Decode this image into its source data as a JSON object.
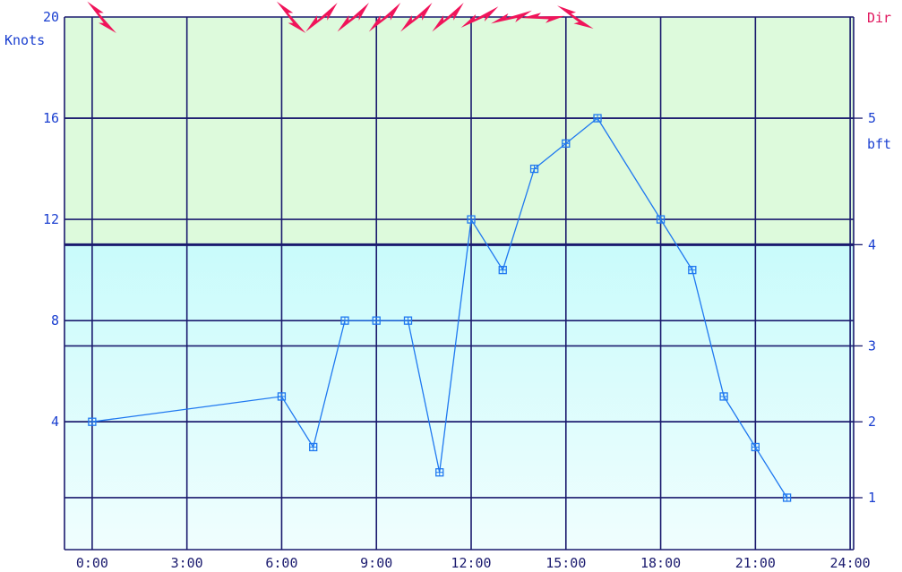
{
  "chart_data": {
    "type": "line",
    "left_axis_label": "Knots",
    "right_axis_label": "bft",
    "direction_label": "Dir",
    "x_ticks": [
      "0:00",
      "3:00",
      "6:00",
      "9:00",
      "12:00",
      "15:00",
      "18:00",
      "21:00",
      "24:00"
    ],
    "y_ticks": [
      "4",
      "8",
      "12",
      "16",
      "20"
    ],
    "bft_ticks": [
      "1",
      "2",
      "3",
      "4",
      "5"
    ],
    "bft_thresholds_knots": [
      1,
      4,
      7,
      11,
      16
    ],
    "xlim": [
      -0.876,
      24.11
    ],
    "ylim": [
      -1.053,
      20
    ],
    "grid": true,
    "band_boundary_knots": 11,
    "colors": {
      "line": "#1f78f0",
      "grid": "#1a1a6e",
      "band_upper": "#ddfadc",
      "band_lower_top": "#c9fbfb",
      "band_lower_bottom": "#f0fefe",
      "arrow": "#f0145a"
    },
    "series": [
      {
        "x": [
          0,
          6,
          7,
          8,
          9,
          10,
          11,
          12,
          13,
          14,
          15,
          16,
          18,
          19,
          20,
          21,
          22
        ],
        "y": [
          4,
          5,
          3,
          8,
          8,
          8,
          2,
          12,
          10,
          14,
          15,
          16,
          12,
          10,
          5,
          3,
          1
        ]
      }
    ],
    "wind_direction_deg": [
      {
        "hour": 0,
        "deg": 315
      },
      {
        "hour": 6,
        "deg": 315
      },
      {
        "hour": 7,
        "deg": 225
      },
      {
        "hour": 8,
        "deg": 225
      },
      {
        "hour": 9,
        "deg": 225
      },
      {
        "hour": 10,
        "deg": 225
      },
      {
        "hour": 11,
        "deg": 225
      },
      {
        "hour": 12,
        "deg": 238
      },
      {
        "hour": 13,
        "deg": 250
      },
      {
        "hour": 14,
        "deg": 265
      },
      {
        "hour": 15,
        "deg": 300
      }
    ]
  }
}
